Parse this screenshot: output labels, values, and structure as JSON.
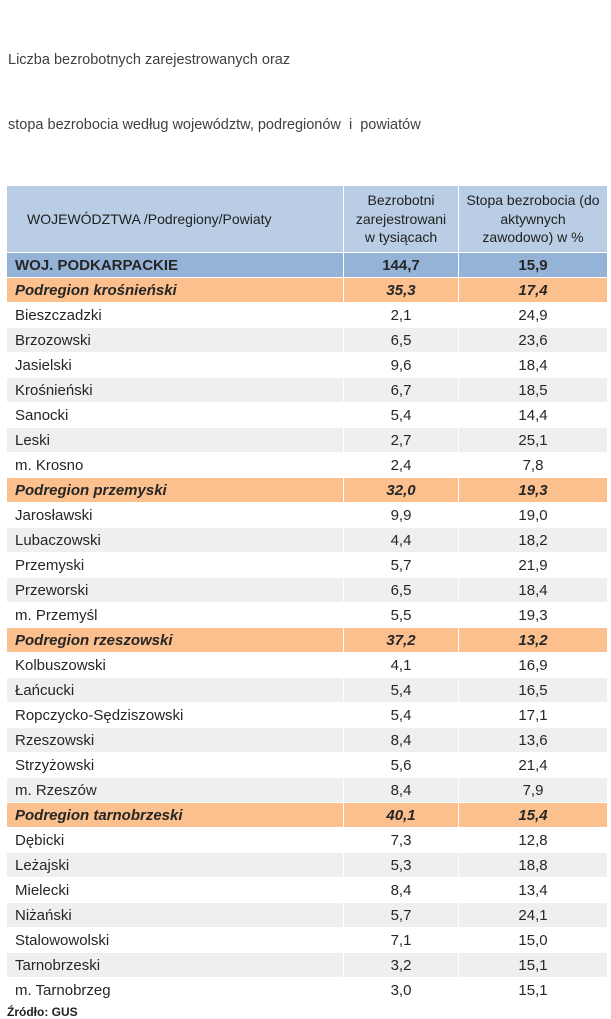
{
  "title": {
    "line1": "Liczba bezrobotnych zarejestrowanych oraz",
    "line2": "stopa bezrobocia według województw, podregionów  i  powiatów"
  },
  "source_note": "Źródło: GUS",
  "colors": {
    "header_bg": "#b9cde5",
    "voivodeship_bg": "#95b3d7",
    "subregion_bg": "#fbc08d",
    "county_shade_bg": "#efefef"
  },
  "chart_data": {
    "type": "table",
    "title": "Liczba bezrobotnych zarejestrowanych oraz stopa bezrobocia według województw, podregionów i powiatów",
    "columns": [
      "WOJEWÓDZTWA /Podregiony/Powiaty",
      "Bezrobotni zarejestrowani w tysiącach",
      "Stopa bezrobocia (do aktywnych zawodowo) w %"
    ],
    "rows": [
      {
        "level": "voivodeship",
        "name": "WOJ. PODKARPACKIE",
        "unemployed": "144,7",
        "rate": "15,9"
      },
      {
        "level": "subregion",
        "name": "Podregion krośnieński",
        "unemployed": "35,3",
        "rate": "17,4"
      },
      {
        "level": "county",
        "name": "Bieszczadzki",
        "unemployed": "2,1",
        "rate": "24,9"
      },
      {
        "level": "county",
        "name": "Brzozowski",
        "unemployed": "6,5",
        "rate": "23,6"
      },
      {
        "level": "county",
        "name": "Jasielski",
        "unemployed": "9,6",
        "rate": "18,4"
      },
      {
        "level": "county",
        "name": "Krośnieński",
        "unemployed": "6,7",
        "rate": "18,5"
      },
      {
        "level": "county",
        "name": "Sanocki",
        "unemployed": "5,4",
        "rate": "14,4"
      },
      {
        "level": "county",
        "name": "Leski",
        "unemployed": "2,7",
        "rate": "25,1"
      },
      {
        "level": "county",
        "name": "m. Krosno",
        "unemployed": "2,4",
        "rate": "7,8"
      },
      {
        "level": "subregion",
        "name": "Podregion przemyski",
        "unemployed": "32,0",
        "rate": "19,3"
      },
      {
        "level": "county",
        "name": "Jarosławski",
        "unemployed": "9,9",
        "rate": "19,0"
      },
      {
        "level": "county",
        "name": "Lubaczowski",
        "unemployed": "4,4",
        "rate": "18,2"
      },
      {
        "level": "county",
        "name": "Przemyski",
        "unemployed": "5,7",
        "rate": "21,9"
      },
      {
        "level": "county",
        "name": "Przeworski",
        "unemployed": "6,5",
        "rate": "18,4"
      },
      {
        "level": "county",
        "name": "m. Przemyśl",
        "unemployed": "5,5",
        "rate": "19,3"
      },
      {
        "level": "subregion",
        "name": "Podregion rzeszowski",
        "unemployed": "37,2",
        "rate": "13,2"
      },
      {
        "level": "county",
        "name": "Kolbuszowski",
        "unemployed": "4,1",
        "rate": "16,9"
      },
      {
        "level": "county",
        "name": "Łańcucki",
        "unemployed": "5,4",
        "rate": "16,5"
      },
      {
        "level": "county",
        "name": "Ropczycko-Sędziszowski",
        "unemployed": "5,4",
        "rate": "17,1"
      },
      {
        "level": "county",
        "name": "Rzeszowski",
        "unemployed": "8,4",
        "rate": "13,6"
      },
      {
        "level": "county",
        "name": "Strzyżowski",
        "unemployed": "5,6",
        "rate": "21,4"
      },
      {
        "level": "county",
        "name": "m. Rzeszów",
        "unemployed": "8,4",
        "rate": "7,9"
      },
      {
        "level": "subregion",
        "name": "Podregion tarnobrzeski",
        "unemployed": "40,1",
        "rate": "15,4"
      },
      {
        "level": "county",
        "name": "Dębicki",
        "unemployed": "7,3",
        "rate": "12,8"
      },
      {
        "level": "county",
        "name": "Leżajski",
        "unemployed": "5,3",
        "rate": "18,8"
      },
      {
        "level": "county",
        "name": "Mielecki",
        "unemployed": "8,4",
        "rate": "13,4"
      },
      {
        "level": "county",
        "name": "Niżański",
        "unemployed": "5,7",
        "rate": "24,1"
      },
      {
        "level": "county",
        "name": "Stalowowolski",
        "unemployed": "7,1",
        "rate": "15,0"
      },
      {
        "level": "county",
        "name": "Tarnobrzeski",
        "unemployed": "3,2",
        "rate": "15,1"
      },
      {
        "level": "county",
        "name": "m. Tarnobrzeg",
        "unemployed": "3,0",
        "rate": "15,1"
      }
    ],
    "source": "Źródło: GUS"
  }
}
